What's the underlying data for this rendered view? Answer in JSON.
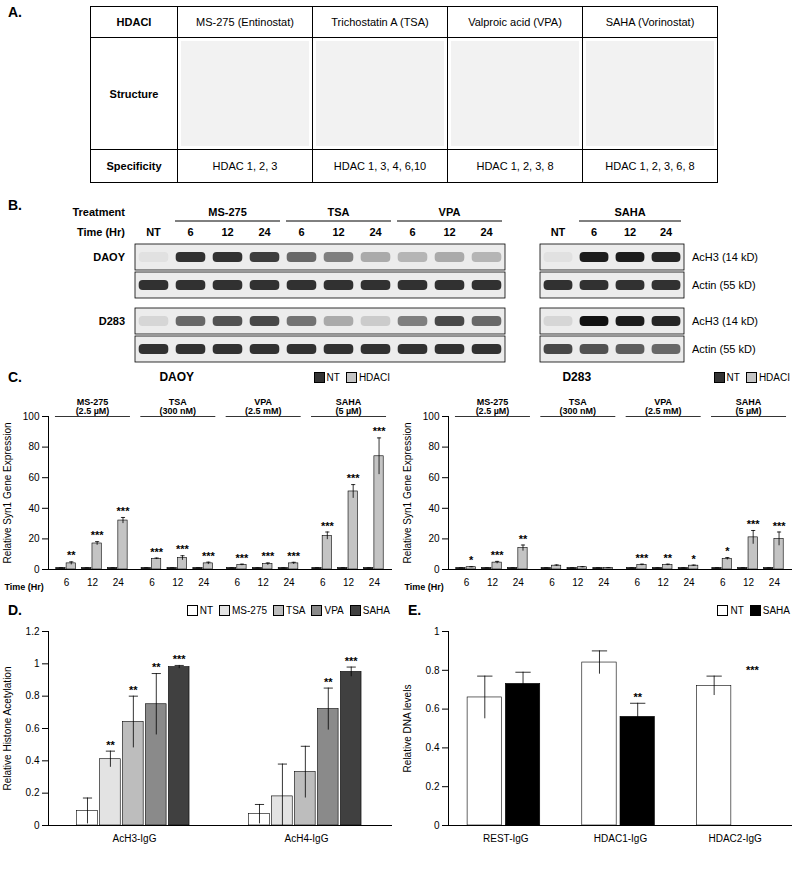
{
  "table": {
    "panel": "A.",
    "header": [
      "HDACI",
      "MS-275 (Entinostat)",
      "Trichostatin A (TSA)",
      "Valproic acid (VPA)",
      "SAHA (Vorinostat)"
    ],
    "rows": [
      [
        "Structure"
      ],
      [
        "Specificity",
        "HDAC 1, 2, 3",
        "HDAC 1, 3, 4, 6,10",
        "HDAC 1, 2, 3, 8",
        "HDAC 1, 2, 3, 6, 8"
      ]
    ]
  },
  "blot": {
    "panel": "B.",
    "treatment_label": "Treatment",
    "time_label": "Time (Hr)",
    "blocks": [
      {
        "lanes": [
          {
            "group": null,
            "time": "NT"
          },
          {
            "group": "MS-275",
            "time": "6"
          },
          {
            "group": "MS-275",
            "time": "12"
          },
          {
            "group": "MS-275",
            "time": "24"
          },
          {
            "group": "TSA",
            "time": "6"
          },
          {
            "group": "TSA",
            "time": "12"
          },
          {
            "group": "TSA",
            "time": "24"
          },
          {
            "group": "VPA",
            "time": "6"
          },
          {
            "group": "VPA",
            "time": "12"
          },
          {
            "group": "VPA",
            "time": "24"
          }
        ]
      },
      {
        "lanes": [
          {
            "group": null,
            "time": "NT"
          },
          {
            "group": "SAHA",
            "time": "6"
          },
          {
            "group": "SAHA",
            "time": "12"
          },
          {
            "group": "SAHA",
            "time": "24"
          }
        ]
      }
    ],
    "cell_lines": [
      {
        "name": "DAOY",
        "rows": [
          {
            "label": "AcH3 (14 kD)",
            "bands": [
              [
                0.05,
                0.85,
                0.85,
                0.8,
                0.6,
                0.5,
                0.3,
                0.25,
                0.3,
                0.25
              ],
              [
                0.05,
                0.95,
                0.95,
                0.9
              ]
            ]
          },
          {
            "label": "Actin (55 kD)",
            "bands": [
              [
                0.85,
                0.85,
                0.85,
                0.85,
                0.85,
                0.85,
                0.85,
                0.85,
                0.85,
                0.85
              ],
              [
                0.85,
                0.85,
                0.85,
                0.85
              ]
            ]
          }
        ]
      },
      {
        "name": "D283",
        "rows": [
          {
            "label": "AcH3 (14 kD)",
            "bands": [
              [
                0.1,
                0.6,
                0.7,
                0.75,
                0.55,
                0.3,
                0.15,
                0.5,
                0.75,
                0.6
              ],
              [
                0.1,
                1,
                0.95,
                0.9
              ]
            ]
          },
          {
            "label": "Actin (55 kD)",
            "bands": [
              [
                0.85,
                0.85,
                0.85,
                0.85,
                0.85,
                0.85,
                0.85,
                0.85,
                0.85,
                0.85
              ],
              [
                0.75,
                0.7,
                0.65,
                0.6
              ]
            ]
          }
        ]
      }
    ]
  },
  "chart_data": [
    {
      "type": "bar",
      "panel": "C.",
      "title": "DAOY",
      "groups": [
        "MS-275 (2.5 µM)",
        "TSA (300 nM)",
        "VPA (2.5 mM)",
        "SAHA (5 µM)"
      ],
      "times": [
        6,
        12,
        24
      ],
      "x_label": "Time (Hr)",
      "y_label": "Relative Syn1 Gene Expression",
      "ylim": [
        0,
        100
      ],
      "yticks": [
        0,
        20,
        40,
        60,
        80,
        100
      ],
      "legend": "top-right",
      "series": [
        {
          "name": "NT",
          "color": "#333333",
          "values": [
            1,
            1,
            1,
            1,
            1,
            1,
            1,
            1,
            1,
            1,
            1,
            1
          ],
          "errors": [
            0.1,
            0.1,
            0.1,
            0.1,
            0.1,
            0.1,
            0.1,
            0.1,
            0.1,
            0.1,
            0.1,
            0.1
          ]
        },
        {
          "name": "HDACI",
          "color": "#c4c4c4",
          "values": [
            4,
            17,
            32,
            7,
            7.5,
            4,
            3,
            3.5,
            4,
            22,
            51,
            74
          ],
          "errors": [
            1,
            1.2,
            2,
            0.5,
            1.5,
            0.8,
            0.5,
            0.8,
            0.7,
            2.5,
            4.5,
            12
          ],
          "significance": [
            "**",
            "***",
            "***",
            "***",
            "***",
            "***",
            "***",
            "***",
            "***",
            "***",
            "***",
            "***"
          ]
        }
      ]
    },
    {
      "type": "bar",
      "title": "D283",
      "groups": [
        "MS-275 (2.5 µM)",
        "TSA (300 nM)",
        "VPA (2.5 mM)",
        "SAHA (5 µM)"
      ],
      "times": [
        6,
        12,
        24
      ],
      "x_label": "Time (Hr)",
      "y_label": "Relative Syn1 Gene Expression",
      "ylim": [
        0,
        100
      ],
      "yticks": [
        0,
        20,
        40,
        60,
        80,
        100
      ],
      "legend": "top-right",
      "series": [
        {
          "name": "NT",
          "color": "#333333",
          "values": [
            1,
            1,
            1,
            1,
            1,
            1,
            1,
            1,
            1,
            1,
            1,
            1
          ],
          "errors": [
            0.1,
            0.1,
            0.1,
            0.1,
            0.1,
            0.1,
            0.1,
            0.1,
            0.1,
            0.1,
            0.1,
            0.1
          ]
        },
        {
          "name": "HDACI",
          "color": "#c4c4c4",
          "values": [
            1.5,
            4.5,
            14,
            2.5,
            1.5,
            1,
            3,
            3,
            2.5,
            7,
            21,
            20
          ],
          "errors": [
            0.3,
            0.8,
            2,
            0.5,
            0.3,
            0.2,
            0.5,
            0.5,
            0.4,
            0.8,
            4.5,
            4.5
          ],
          "significance": [
            "*",
            "***",
            "**",
            null,
            null,
            null,
            "***",
            "**",
            "*",
            "*",
            "***",
            "***"
          ]
        }
      ]
    },
    {
      "type": "bar",
      "panel": "D.",
      "categories": [
        "AcH3-IgG",
        "AcH4-IgG"
      ],
      "y_label": "Relative Histone Acetylation",
      "ylim": [
        0,
        1.2
      ],
      "yticks": [
        0,
        0.2,
        0.4,
        0.6,
        0.8,
        1,
        1.2
      ],
      "legend": "top-right",
      "series": [
        {
          "name": "NT",
          "color": "#ffffff",
          "values": [
            0.09,
            0.07
          ],
          "errors": [
            0.08,
            0.06
          ],
          "significance": [
            null,
            null
          ]
        },
        {
          "name": "MS-275",
          "color": "#e3e3e3",
          "values": [
            0.41,
            0.18
          ],
          "errors": [
            0.05,
            0.2
          ],
          "significance": [
            "**",
            null
          ]
        },
        {
          "name": "TSA",
          "color": "#bdbdbd",
          "values": [
            0.64,
            0.33
          ],
          "errors": [
            0.16,
            0.16
          ],
          "significance": [
            "**",
            null
          ]
        },
        {
          "name": "VPA",
          "color": "#8a8a8a",
          "values": [
            0.75,
            0.72
          ],
          "errors": [
            0.19,
            0.13
          ],
          "significance": [
            "**",
            "**"
          ]
        },
        {
          "name": "SAHA",
          "color": "#404040",
          "values": [
            0.98,
            0.95
          ],
          "errors": [
            0.01,
            0.03
          ],
          "significance": [
            "***",
            "***"
          ]
        }
      ]
    },
    {
      "type": "bar",
      "panel": "E.",
      "categories": [
        "REST-IgG",
        "HDAC1-IgG",
        "HDAC2-IgG"
      ],
      "y_label": "Relative DNA levels",
      "ylim": [
        0,
        1
      ],
      "yticks": [
        0,
        0.2,
        0.4,
        0.6,
        0.8,
        1
      ],
      "legend": "top-right",
      "series": [
        {
          "name": "NT",
          "color": "#ffffff",
          "values": [
            0.66,
            0.84,
            0.72
          ],
          "errors": [
            0.11,
            0.06,
            0.05
          ],
          "significance": [
            null,
            null,
            null
          ]
        },
        {
          "name": "SAHA",
          "color": "#000000",
          "values": [
            0.73,
            0.56,
            0
          ],
          "errors": [
            0.06,
            0.07,
            0
          ],
          "significance": [
            null,
            "**",
            "***"
          ]
        }
      ]
    }
  ]
}
